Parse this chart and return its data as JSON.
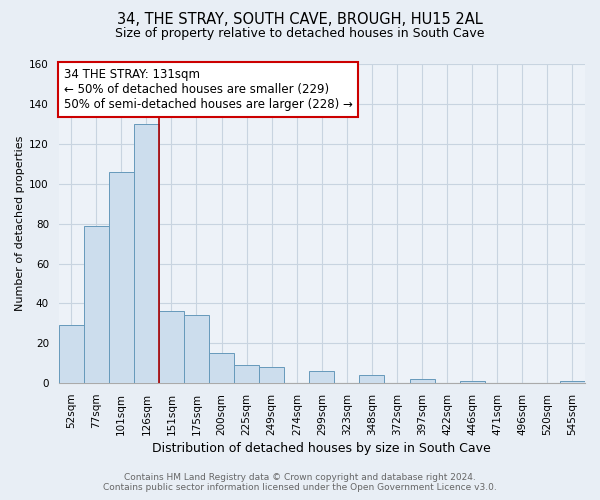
{
  "title": "34, THE STRAY, SOUTH CAVE, BROUGH, HU15 2AL",
  "subtitle": "Size of property relative to detached houses in South Cave",
  "xlabel": "Distribution of detached houses by size in South Cave",
  "ylabel": "Number of detached properties",
  "bar_labels": [
    "52sqm",
    "77sqm",
    "101sqm",
    "126sqm",
    "151sqm",
    "175sqm",
    "200sqm",
    "225sqm",
    "249sqm",
    "274sqm",
    "299sqm",
    "323sqm",
    "348sqm",
    "372sqm",
    "397sqm",
    "422sqm",
    "446sqm",
    "471sqm",
    "496sqm",
    "520sqm",
    "545sqm"
  ],
  "bar_values": [
    29,
    79,
    106,
    130,
    36,
    34,
    15,
    9,
    8,
    0,
    6,
    0,
    4,
    0,
    2,
    0,
    1,
    0,
    0,
    0,
    1
  ],
  "bar_color": "#ccdded",
  "bar_edge_color": "#6699bb",
  "ylim": [
    0,
    160
  ],
  "yticks": [
    0,
    20,
    40,
    60,
    80,
    100,
    120,
    140,
    160
  ],
  "annotation_line1": "34 THE STRAY: 131sqm",
  "annotation_line2": "← 50% of detached houses are smaller (229)",
  "annotation_line3": "50% of semi-detached houses are larger (228) →",
  "red_line_xindex": 3.5,
  "red_line_color": "#aa0000",
  "annotation_box_color": "#ffffff",
  "annotation_box_edge_color": "#cc0000",
  "footer_line1": "Contains HM Land Registry data © Crown copyright and database right 2024.",
  "footer_line2": "Contains public sector information licensed under the Open Government Licence v3.0.",
  "background_color": "#e8eef5",
  "plot_background_color": "#edf2f8",
  "grid_color": "#c8d4e0",
  "title_fontsize": 10.5,
  "subtitle_fontsize": 9,
  "ylabel_fontsize": 8,
  "xlabel_fontsize": 9,
  "tick_fontsize": 7.5,
  "annotation_fontsize": 8.5,
  "footer_fontsize": 6.5
}
